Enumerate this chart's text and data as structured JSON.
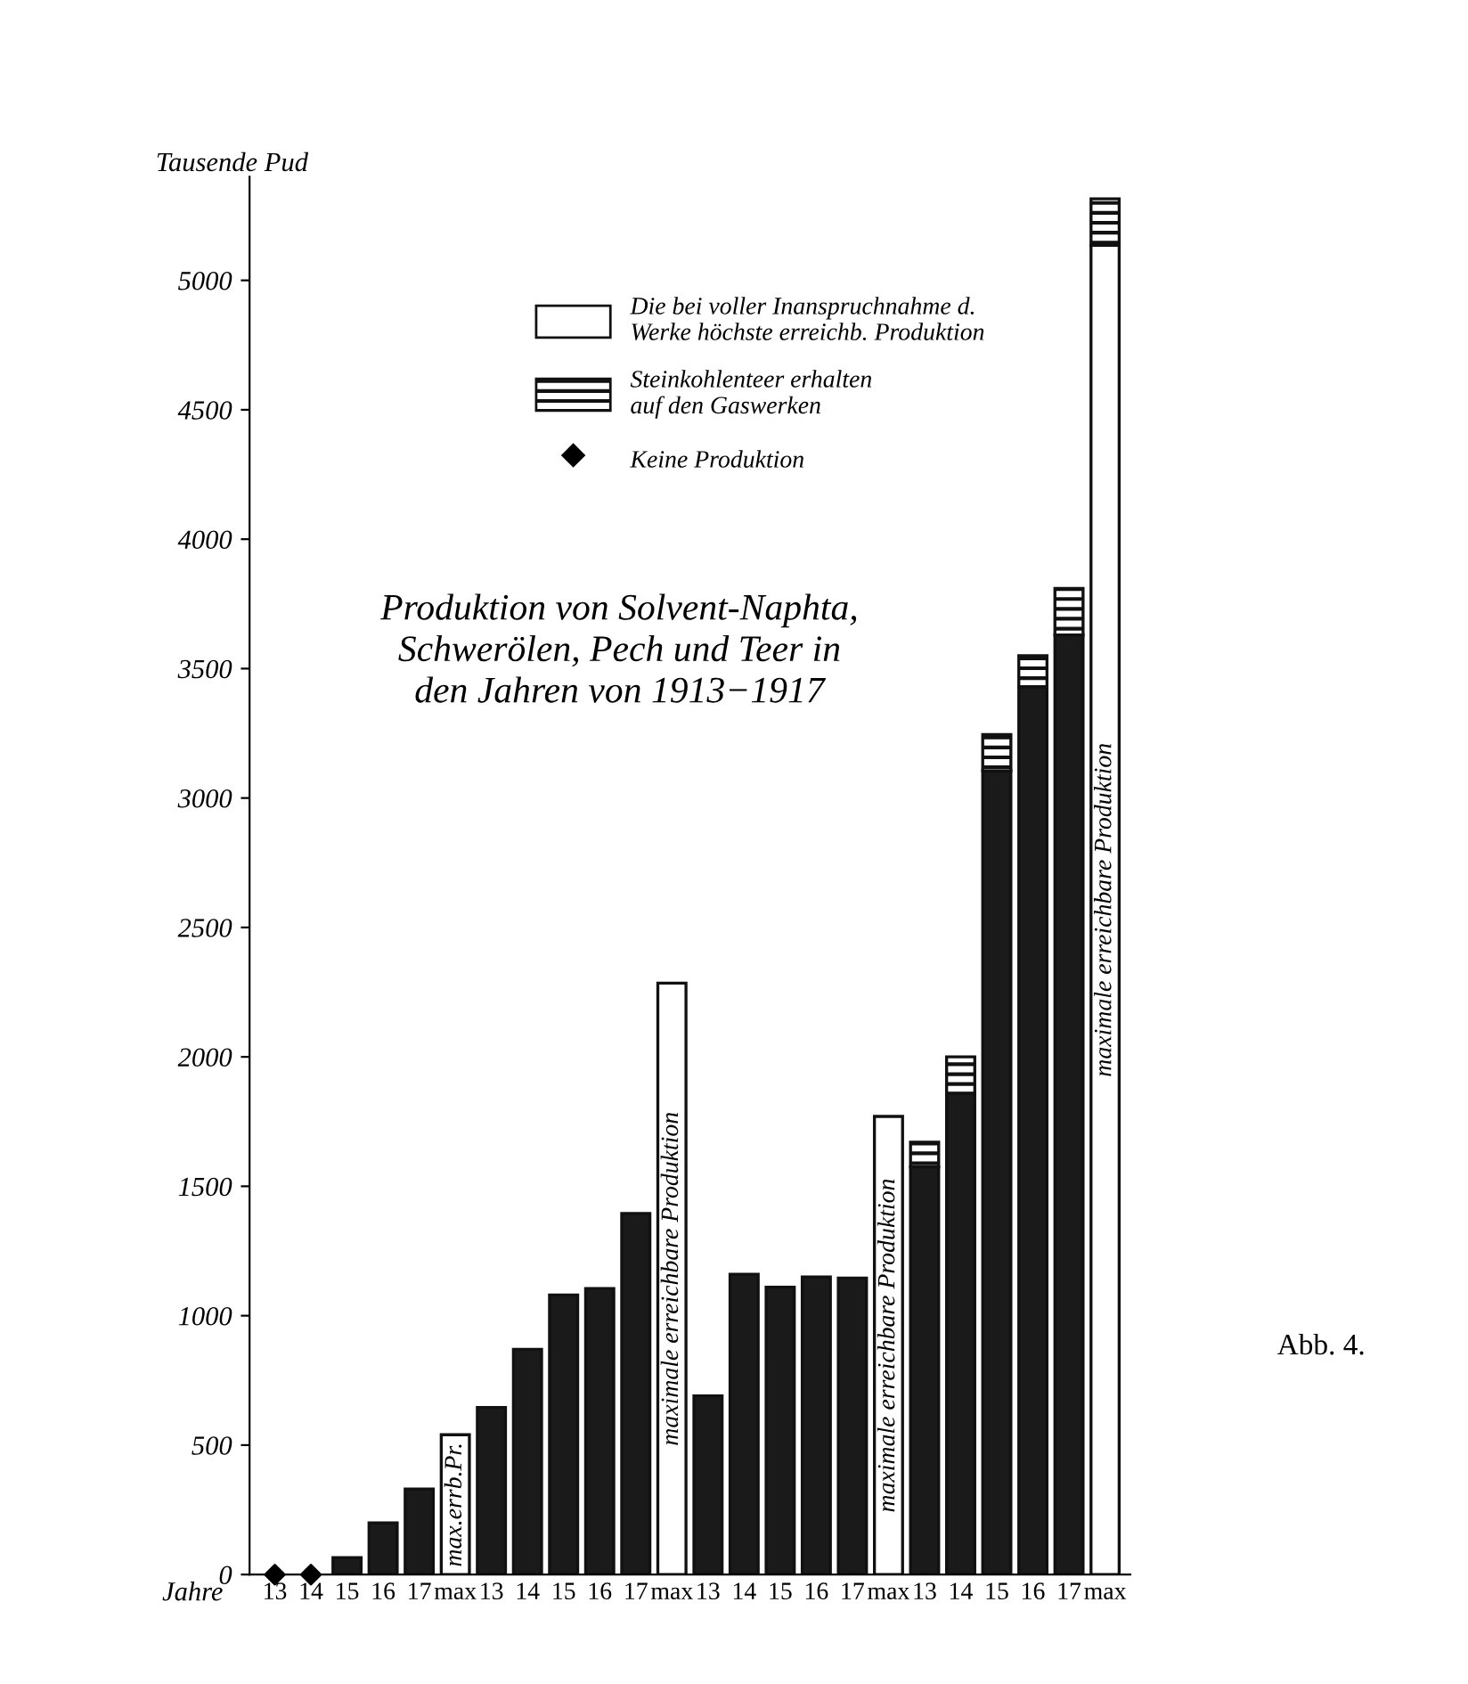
{
  "chart_data": {
    "type": "bar",
    "title": "Produktion von Solvent-Naphta,\nSchwerölen, Pech und Teer in\nden Jahren von 1913−1917",
    "xlabel": "Jahre",
    "ylabel": "Tausende Pud",
    "categories": [
      "13",
      "14",
      "15",
      "16",
      "17",
      "max",
      "13",
      "14",
      "15",
      "16",
      "17",
      "max",
      "13",
      "14",
      "15",
      "16",
      "17",
      "max",
      "13",
      "14",
      "15",
      "16",
      "17",
      "max"
    ],
    "stacked": true,
    "series": [
      {
        "color": "#1a1a1a",
        "values": [
          null,
          null,
          65,
          200,
          330,
          null,
          645,
          870,
          1080,
          1105,
          1395,
          null,
          690,
          1160,
          1110,
          1150,
          1145,
          null,
          1575,
          1860,
          3105,
          3430,
          3630,
          null
        ]
      },
      {
        "name": "Die bei voller Inanspruchnahme d.\nWerke höchste erreichb. Produktion",
        "color": "#ffffff",
        "values": [
          null,
          null,
          null,
          null,
          null,
          540,
          null,
          null,
          null,
          null,
          null,
          2285,
          null,
          null,
          null,
          null,
          null,
          1770,
          null,
          null,
          null,
          null,
          null,
          5135
        ],
        "value_labels": [
          null,
          null,
          null,
          null,
          null,
          "max.errb.Pr.",
          null,
          null,
          null,
          null,
          null,
          "maximale erreichbare Produktion",
          null,
          null,
          null,
          null,
          null,
          "maximale erreichbare Produktion",
          null,
          null,
          null,
          null,
          null,
          "maximale erreichbare Produktion"
        ]
      },
      {
        "name": "Steinkohlenteer erhalten\nauf den Gaswerken",
        "color": "#111111",
        "values": [
          null,
          null,
          null,
          null,
          null,
          null,
          null,
          null,
          null,
          null,
          null,
          null,
          null,
          null,
          null,
          null,
          null,
          null,
          95,
          140,
          140,
          120,
          180,
          180
        ]
      },
      {
        "name": "Keine Produktion",
        "type": "scatter",
        "marker": "diamond",
        "color": "#000000",
        "values": [
          0,
          0,
          null,
          null,
          null,
          null,
          null,
          null,
          null,
          null,
          null,
          null,
          null,
          null,
          null,
          null,
          null,
          null,
          null,
          null,
          null,
          null,
          null,
          null
        ]
      }
    ],
    "ylim": [
      0,
      5400
    ],
    "yticks": [
      0,
      500,
      1000,
      1500,
      2000,
      2500,
      3000,
      3500,
      4000,
      4500,
      5000
    ],
    "grid": false,
    "legend": "top right",
    "annotations": [
      "Abb. 4."
    ]
  }
}
